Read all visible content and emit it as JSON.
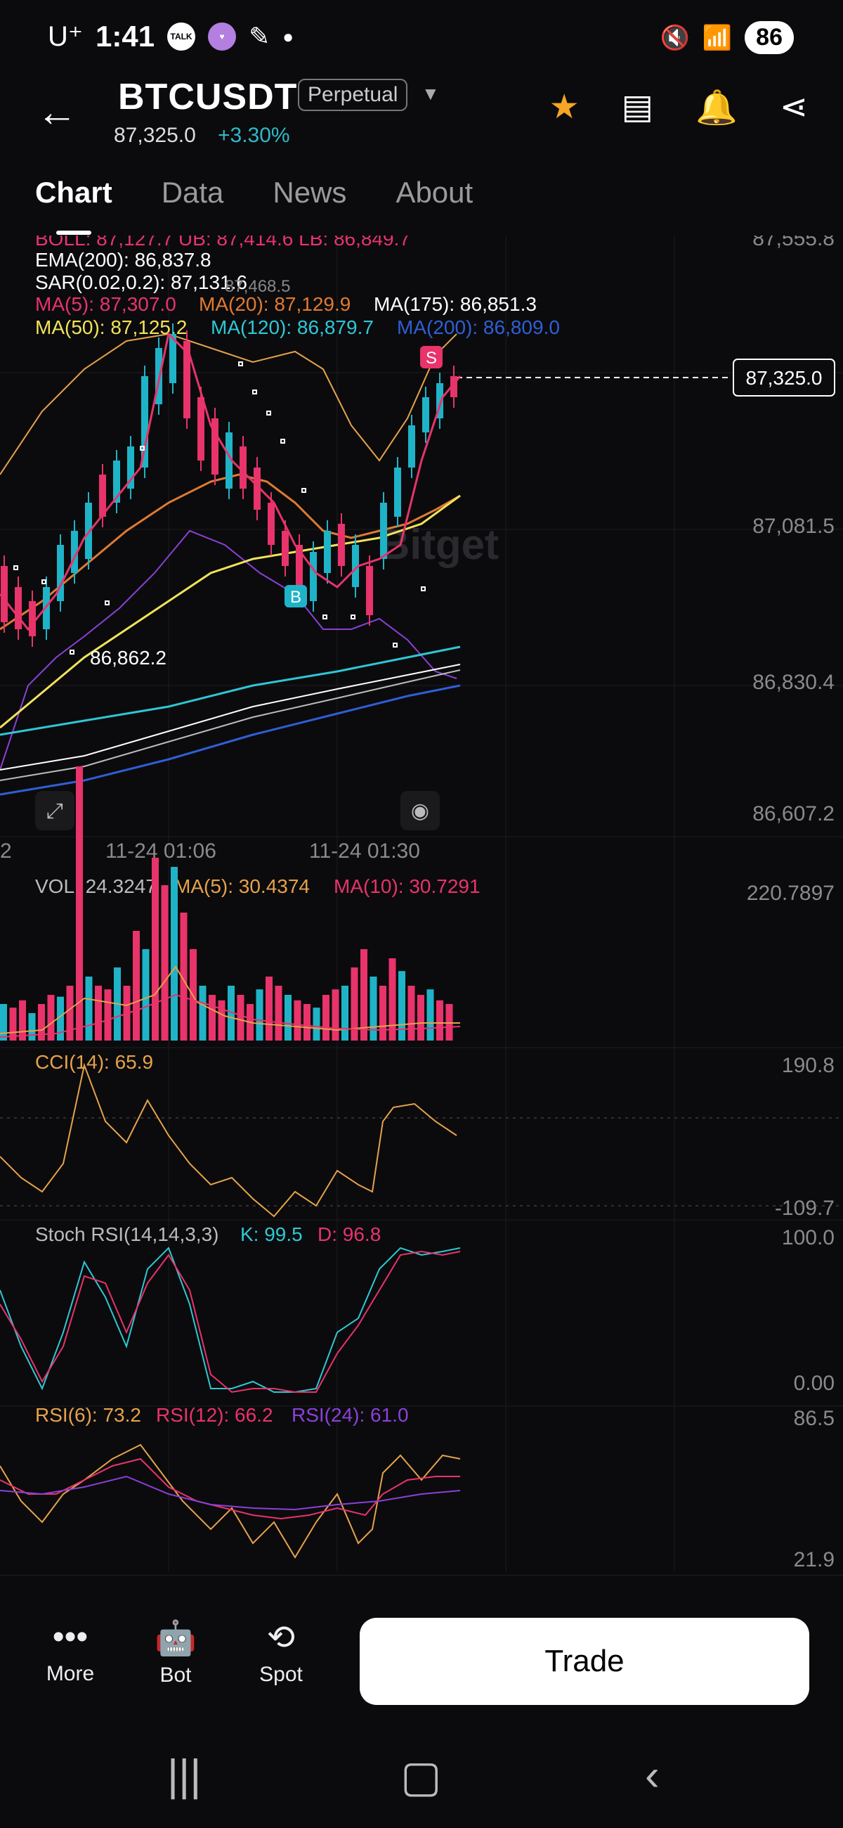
{
  "status_bar": {
    "carrier": "U⁺",
    "time": "1:41",
    "notif_icon_1": "TALK",
    "battery": "86"
  },
  "header": {
    "symbol": "BTCUSDT",
    "contract_type": "Perpetual",
    "last_price": "87,325.0",
    "change_pct": "+3.30%"
  },
  "tabs": [
    {
      "label": "Chart",
      "active": true
    },
    {
      "label": "Data",
      "active": false
    },
    {
      "label": "News",
      "active": false
    },
    {
      "label": "About",
      "active": false
    }
  ],
  "indicators": {
    "boll_line": "BOLL: 87,127.7  UB: 87,414.6  LB: 86,849.7",
    "ema200": "EMA(200): 86,837.8",
    "sar": "SAR(0.02,0.2): 87,131.6",
    "ma5": "MA(5): 87,307.0",
    "ma20": "MA(20): 87,129.9",
    "ma175": "MA(175): 86,851.3",
    "ma50": "MA(50): 87,125.2",
    "ma120": "MA(120): 86,879.7",
    "ma200": "MA(200): 86,809.0",
    "sar_mark": "87,468.5"
  },
  "price_axis": [
    "87,555.8",
    "87,081.5",
    "86,830.4",
    "86,607.2"
  ],
  "current_price_tag": "87,325.0",
  "low_label": "86,862.2",
  "watermark": "Bitget",
  "time_axis": [
    "2",
    "11-24 01:06",
    "11-24 01:30"
  ],
  "signals": {
    "buy": "B",
    "sell": "S"
  },
  "volume": {
    "vol": "VOL: 24.3247",
    "ma5": "MA(5): 30.4374",
    "ma10": "MA(10): 30.7291",
    "max": "220.7897"
  },
  "cci": {
    "label": "CCI(14): 65.9",
    "top": "190.8",
    "bottom": "-109.7"
  },
  "stoch": {
    "label": "Stoch RSI(14,14,3,3)",
    "k": "K: 99.5",
    "d": "D: 96.8",
    "top": "100.0",
    "bottom": "0.00"
  },
  "rsi": {
    "r6": "RSI(6): 73.2",
    "r12": "RSI(12): 66.2",
    "r24": "RSI(24): 61.0",
    "top": "86.5",
    "bottom": "21.9"
  },
  "bottom_bar": {
    "more": "More",
    "bot": "Bot",
    "spot": "Spot",
    "trade": "Trade"
  },
  "colors": {
    "up": "#1fb3c8",
    "down": "#e8336b",
    "ma5": "#e8336b",
    "ma20": "#e07a32",
    "ma50": "#f2e35a",
    "ma120": "#2fc7d6",
    "ma200": "#2f5fd6",
    "ema200": "#ffffff",
    "boll": "#e6a24b",
    "lb": "#8b40d8"
  }
}
